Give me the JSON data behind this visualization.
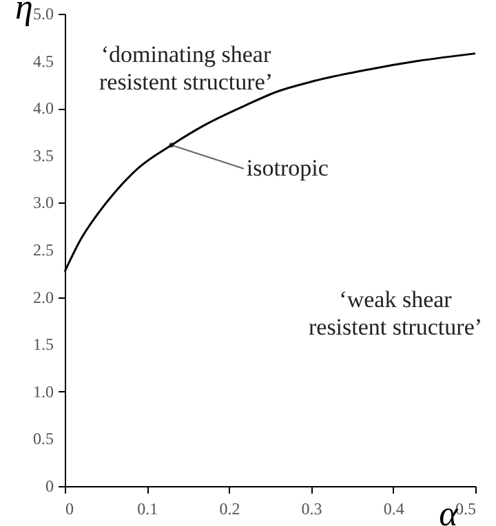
{
  "chart_data": {
    "type": "line",
    "xlabel": "α",
    "ylabel": "η",
    "x": [
      0,
      0.02,
      0.04,
      0.06,
      0.09,
      0.13,
      0.17,
      0.22,
      0.26,
      0.3,
      0.37,
      0.43,
      0.5
    ],
    "series": [
      {
        "color": "#000000",
        "values": [
          2.27,
          2.62,
          2.88,
          3.1,
          3.37,
          3.61,
          3.82,
          4.03,
          4.18,
          4.28,
          4.41,
          4.5,
          4.58
        ]
      }
    ],
    "xlim": [
      0,
      0.5
    ],
    "xticks": [
      0,
      0.1,
      0.2,
      0.3,
      0.4,
      0.5
    ],
    "ylim": [
      0,
      5
    ],
    "yticks": [
      0,
      {
        "value": 0.5,
        "label": "0.5"
      },
      {
        "value": 1,
        "label": "1.0"
      },
      {
        "value": 1.5,
        "label": "1.5"
      },
      {
        "value": 2,
        "label": "2.0"
      },
      {
        "value": 2.5,
        "label": "2.5"
      },
      {
        "value": 3,
        "label": "3.0"
      },
      {
        "value": 3.5,
        "label": "3.5"
      },
      {
        "value": 4,
        "label": "4.0"
      },
      {
        "value": 4.5,
        "label": "4.5"
      },
      {
        "value": 5,
        "label": "5.0"
      }
    ],
    "grid": false,
    "marker": "none",
    "line_style": "solid",
    "annotations": [
      "‘dominating shear\nresistent structure’",
      {
        "text": "isotropic",
        "x": 0.13,
        "y": 3.61
      },
      "‘weak shear\nresistent structure’"
    ]
  }
}
